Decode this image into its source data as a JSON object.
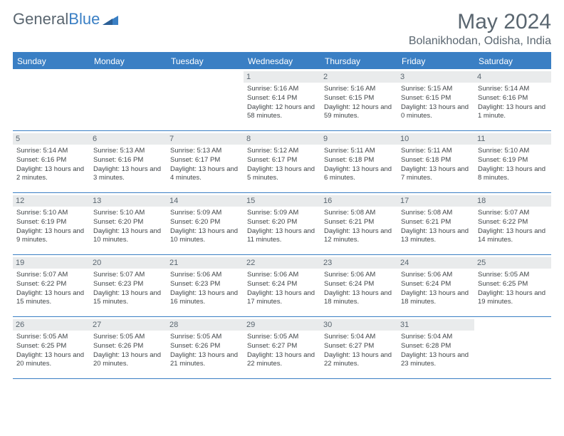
{
  "logo": {
    "word1": "General",
    "word2": "Blue"
  },
  "title": "May 2024",
  "location": "Bolanikhodan, Odisha, India",
  "colors": {
    "accent": "#3a7fc4",
    "header_text": "#ffffff",
    "muted_text": "#5a6670",
    "body_text": "#404548",
    "daynum_bg": "#e9ebec",
    "page_bg": "#ffffff"
  },
  "day_names": [
    "Sunday",
    "Monday",
    "Tuesday",
    "Wednesday",
    "Thursday",
    "Friday",
    "Saturday"
  ],
  "weeks": [
    [
      {
        "n": "",
        "sunrise": "",
        "sunset": "",
        "daylight": ""
      },
      {
        "n": "",
        "sunrise": "",
        "sunset": "",
        "daylight": ""
      },
      {
        "n": "",
        "sunrise": "",
        "sunset": "",
        "daylight": ""
      },
      {
        "n": "1",
        "sunrise": "Sunrise: 5:16 AM",
        "sunset": "Sunset: 6:14 PM",
        "daylight": "Daylight: 12 hours and 58 minutes."
      },
      {
        "n": "2",
        "sunrise": "Sunrise: 5:16 AM",
        "sunset": "Sunset: 6:15 PM",
        "daylight": "Daylight: 12 hours and 59 minutes."
      },
      {
        "n": "3",
        "sunrise": "Sunrise: 5:15 AM",
        "sunset": "Sunset: 6:15 PM",
        "daylight": "Daylight: 13 hours and 0 minutes."
      },
      {
        "n": "4",
        "sunrise": "Sunrise: 5:14 AM",
        "sunset": "Sunset: 6:16 PM",
        "daylight": "Daylight: 13 hours and 1 minute."
      }
    ],
    [
      {
        "n": "5",
        "sunrise": "Sunrise: 5:14 AM",
        "sunset": "Sunset: 6:16 PM",
        "daylight": "Daylight: 13 hours and 2 minutes."
      },
      {
        "n": "6",
        "sunrise": "Sunrise: 5:13 AM",
        "sunset": "Sunset: 6:16 PM",
        "daylight": "Daylight: 13 hours and 3 minutes."
      },
      {
        "n": "7",
        "sunrise": "Sunrise: 5:13 AM",
        "sunset": "Sunset: 6:17 PM",
        "daylight": "Daylight: 13 hours and 4 minutes."
      },
      {
        "n": "8",
        "sunrise": "Sunrise: 5:12 AM",
        "sunset": "Sunset: 6:17 PM",
        "daylight": "Daylight: 13 hours and 5 minutes."
      },
      {
        "n": "9",
        "sunrise": "Sunrise: 5:11 AM",
        "sunset": "Sunset: 6:18 PM",
        "daylight": "Daylight: 13 hours and 6 minutes."
      },
      {
        "n": "10",
        "sunrise": "Sunrise: 5:11 AM",
        "sunset": "Sunset: 6:18 PM",
        "daylight": "Daylight: 13 hours and 7 minutes."
      },
      {
        "n": "11",
        "sunrise": "Sunrise: 5:10 AM",
        "sunset": "Sunset: 6:19 PM",
        "daylight": "Daylight: 13 hours and 8 minutes."
      }
    ],
    [
      {
        "n": "12",
        "sunrise": "Sunrise: 5:10 AM",
        "sunset": "Sunset: 6:19 PM",
        "daylight": "Daylight: 13 hours and 9 minutes."
      },
      {
        "n": "13",
        "sunrise": "Sunrise: 5:10 AM",
        "sunset": "Sunset: 6:20 PM",
        "daylight": "Daylight: 13 hours and 10 minutes."
      },
      {
        "n": "14",
        "sunrise": "Sunrise: 5:09 AM",
        "sunset": "Sunset: 6:20 PM",
        "daylight": "Daylight: 13 hours and 10 minutes."
      },
      {
        "n": "15",
        "sunrise": "Sunrise: 5:09 AM",
        "sunset": "Sunset: 6:20 PM",
        "daylight": "Daylight: 13 hours and 11 minutes."
      },
      {
        "n": "16",
        "sunrise": "Sunrise: 5:08 AM",
        "sunset": "Sunset: 6:21 PM",
        "daylight": "Daylight: 13 hours and 12 minutes."
      },
      {
        "n": "17",
        "sunrise": "Sunrise: 5:08 AM",
        "sunset": "Sunset: 6:21 PM",
        "daylight": "Daylight: 13 hours and 13 minutes."
      },
      {
        "n": "18",
        "sunrise": "Sunrise: 5:07 AM",
        "sunset": "Sunset: 6:22 PM",
        "daylight": "Daylight: 13 hours and 14 minutes."
      }
    ],
    [
      {
        "n": "19",
        "sunrise": "Sunrise: 5:07 AM",
        "sunset": "Sunset: 6:22 PM",
        "daylight": "Daylight: 13 hours and 15 minutes."
      },
      {
        "n": "20",
        "sunrise": "Sunrise: 5:07 AM",
        "sunset": "Sunset: 6:23 PM",
        "daylight": "Daylight: 13 hours and 15 minutes."
      },
      {
        "n": "21",
        "sunrise": "Sunrise: 5:06 AM",
        "sunset": "Sunset: 6:23 PM",
        "daylight": "Daylight: 13 hours and 16 minutes."
      },
      {
        "n": "22",
        "sunrise": "Sunrise: 5:06 AM",
        "sunset": "Sunset: 6:24 PM",
        "daylight": "Daylight: 13 hours and 17 minutes."
      },
      {
        "n": "23",
        "sunrise": "Sunrise: 5:06 AM",
        "sunset": "Sunset: 6:24 PM",
        "daylight": "Daylight: 13 hours and 18 minutes."
      },
      {
        "n": "24",
        "sunrise": "Sunrise: 5:06 AM",
        "sunset": "Sunset: 6:24 PM",
        "daylight": "Daylight: 13 hours and 18 minutes."
      },
      {
        "n": "25",
        "sunrise": "Sunrise: 5:05 AM",
        "sunset": "Sunset: 6:25 PM",
        "daylight": "Daylight: 13 hours and 19 minutes."
      }
    ],
    [
      {
        "n": "26",
        "sunrise": "Sunrise: 5:05 AM",
        "sunset": "Sunset: 6:25 PM",
        "daylight": "Daylight: 13 hours and 20 minutes."
      },
      {
        "n": "27",
        "sunrise": "Sunrise: 5:05 AM",
        "sunset": "Sunset: 6:26 PM",
        "daylight": "Daylight: 13 hours and 20 minutes."
      },
      {
        "n": "28",
        "sunrise": "Sunrise: 5:05 AM",
        "sunset": "Sunset: 6:26 PM",
        "daylight": "Daylight: 13 hours and 21 minutes."
      },
      {
        "n": "29",
        "sunrise": "Sunrise: 5:05 AM",
        "sunset": "Sunset: 6:27 PM",
        "daylight": "Daylight: 13 hours and 22 minutes."
      },
      {
        "n": "30",
        "sunrise": "Sunrise: 5:04 AM",
        "sunset": "Sunset: 6:27 PM",
        "daylight": "Daylight: 13 hours and 22 minutes."
      },
      {
        "n": "31",
        "sunrise": "Sunrise: 5:04 AM",
        "sunset": "Sunset: 6:28 PM",
        "daylight": "Daylight: 13 hours and 23 minutes."
      },
      {
        "n": "",
        "sunrise": "",
        "sunset": "",
        "daylight": ""
      }
    ]
  ]
}
